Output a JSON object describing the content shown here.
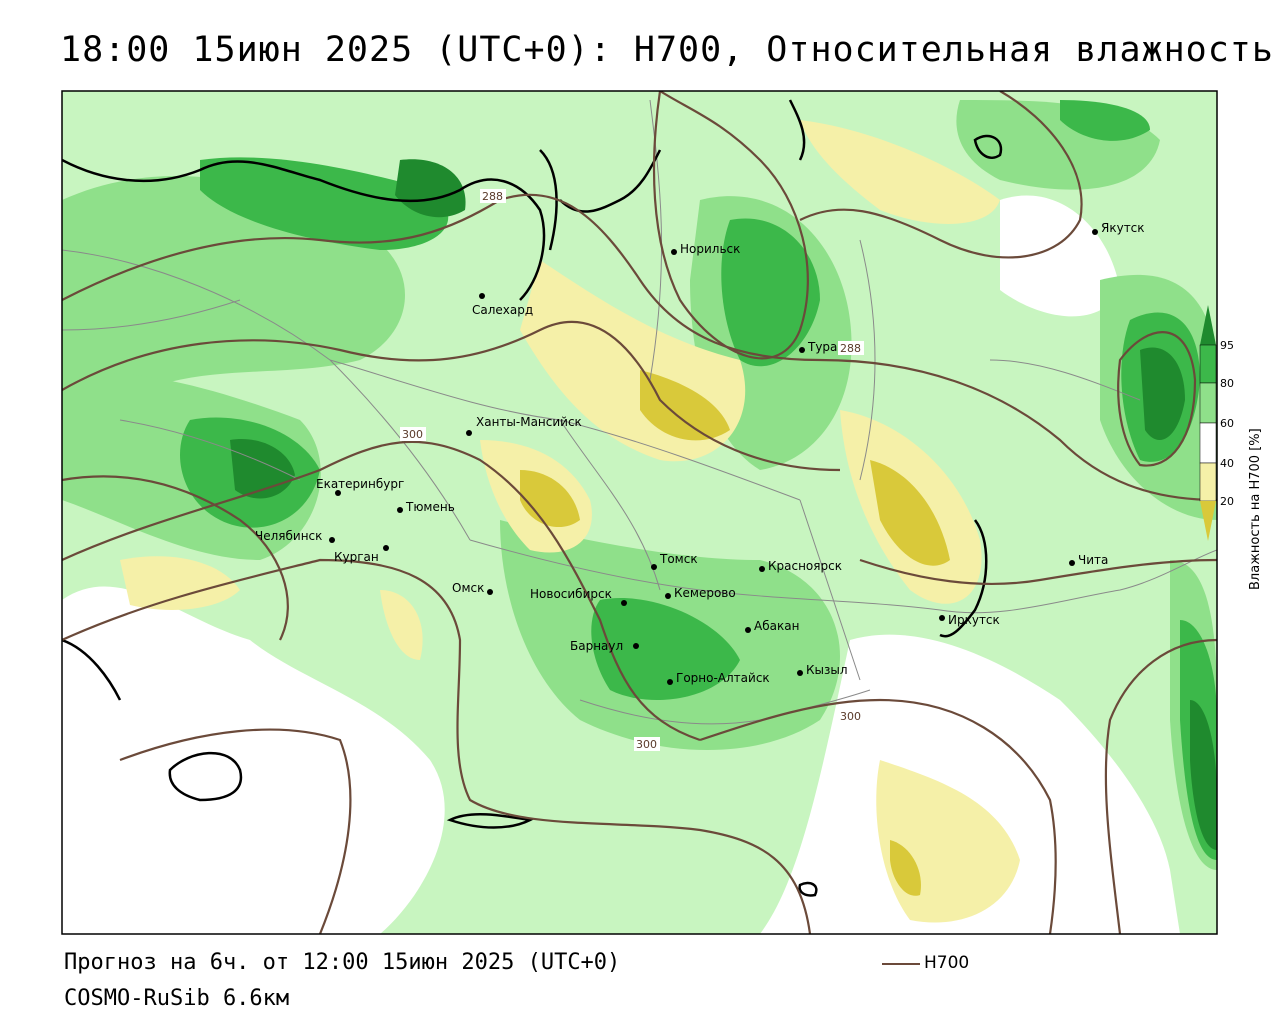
{
  "title": "18:00 15июн 2025 (UTC+0): H700, Относительная влажность",
  "footer": {
    "forecast": "Прогноз на 6ч. от 12:00 15июн 2025 (UTC+0)",
    "model": "COSMO-RuSib 6.6км"
  },
  "legend": {
    "line_label": "H700",
    "line_color": "#6b4a3a"
  },
  "colorbar": {
    "title": "Влажность на H700 [%]",
    "ticks": [
      "95",
      "80",
      "60",
      "40",
      "20"
    ],
    "colors": {
      "very_wet": "#1f8a2e",
      "wet": "#3cb84a",
      "moist": "#8fe08a",
      "light": "#c8f5c0",
      "neutral": "#ffffff",
      "dry": "#f5f0a8",
      "very_dry": "#d9c93a"
    }
  },
  "contour_labels": [
    "288",
    "288",
    "300",
    "300",
    "300"
  ],
  "cities": [
    {
      "name": "Якутск"
    },
    {
      "name": "Норильск"
    },
    {
      "name": "Салехард"
    },
    {
      "name": "Тура"
    },
    {
      "name": "Ханты-Мансийск"
    },
    {
      "name": "Екатеринбург"
    },
    {
      "name": "Тюмень"
    },
    {
      "name": "Челябинск"
    },
    {
      "name": "Курган"
    },
    {
      "name": "Томск"
    },
    {
      "name": "Красноярск"
    },
    {
      "name": "Чита"
    },
    {
      "name": "Омск"
    },
    {
      "name": "Новосибирск"
    },
    {
      "name": "Кемерово"
    },
    {
      "name": "Иркутск"
    },
    {
      "name": "Абакан"
    },
    {
      "name": "Барнаул"
    },
    {
      "name": "Кызыл"
    },
    {
      "name": "Горно-Алтайск"
    }
  ]
}
